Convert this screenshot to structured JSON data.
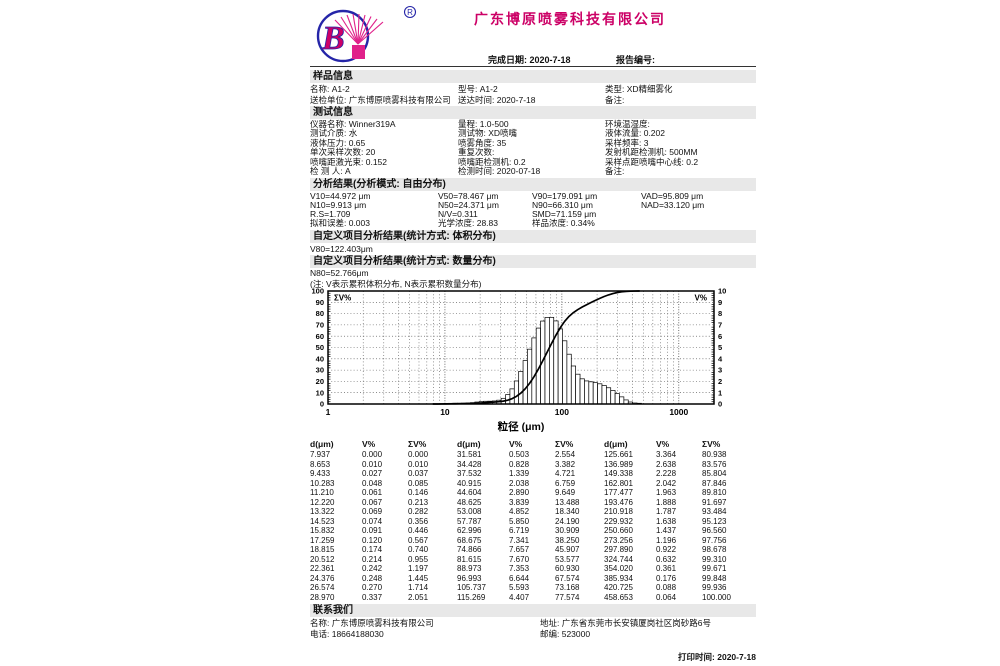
{
  "colors": {
    "accent_magenta": "#cc0066",
    "logo_blue": "#2525a8",
    "logo_pink": "#e0218a",
    "section_bar_bg": "#e8e8e8"
  },
  "header": {
    "company": "广东博原喷雾科技有限公司",
    "logo_letter": "B",
    "registered": "R",
    "complete_date": "完成日期: 2020-7-18",
    "report_no": "报告编号:"
  },
  "sections": {
    "sample": {
      "title": "样品信息",
      "rows": [
        [
          "名称: A1-2",
          "型号: A1-2",
          "类型: XD精细雾化"
        ],
        [
          "送检单位: 广东博原喷雾科技有限公司",
          "送达时间: 2020-7-18",
          "备注:"
        ]
      ]
    },
    "test": {
      "title": "测试信息",
      "rows": [
        [
          "仪器名称: Winner319A",
          "量程: 1.0-500",
          "环境温湿度:"
        ],
        [
          "测试介质: 水",
          "测试物: XD喷嘴",
          "液体流量: 0.202"
        ],
        [
          "液体压力: 0.65",
          "喷雾角度: 35",
          "采样频率: 3"
        ],
        [
          "单次采样次数: 20",
          "重复次数:",
          "发射机距检测机: 500MM"
        ],
        [
          "喷嘴距激光束: 0.152",
          "喷嘴距检测机: 0.2",
          "采样点距喷嘴中心线: 0.2"
        ],
        [
          "检 测 人: A",
          "检测时间: 2020-07-18",
          "备注:"
        ]
      ]
    },
    "analysis": {
      "title": "分析结果(分析模式: 自由分布)",
      "rows": [
        [
          "V10=44.972 μm",
          "V50=78.467 μm",
          "V90=179.091 μm",
          "VAD=95.809 μm"
        ],
        [
          "N10=9.913 μm",
          "N50=24.371 μm",
          "N90=66.310 μm",
          "NAD=33.120 μm"
        ],
        [
          "R.S=1.709",
          "N/V=0.311",
          "SMD=71.159 μm",
          ""
        ],
        [
          "拟和误差: 0.003",
          "光学浓度: 28.83",
          "样品浓度: 0.34%",
          ""
        ]
      ]
    },
    "custom_volume": {
      "title": "自定义项目分析结果(统计方式: 体积分布)",
      "value": "V80=122.403μm"
    },
    "custom_number": {
      "title": "自定义项目分析结果(统计方式: 数量分布)",
      "value": "N80=52.766μm"
    },
    "note": "(注: V表示累积体积分布, N表示累积数量分布)"
  },
  "chart_data": {
    "type": "bar",
    "subtype": "log-histogram with cumulative line",
    "title": "",
    "xlabel": "粒径 (μm)",
    "left_axis_label": "ΣV%",
    "right_axis_label": "V%",
    "x_range": [
      1,
      2000
    ],
    "left_range": [
      0,
      100
    ],
    "right_range": [
      0,
      10
    ],
    "x_ticks": [
      1,
      10,
      100,
      1000
    ],
    "grid": true,
    "d": [
      7.937,
      8.653,
      9.433,
      10.283,
      11.21,
      12.22,
      13.322,
      14.523,
      15.832,
      17.259,
      18.815,
      20.512,
      22.361,
      24.376,
      26.574,
      28.97,
      31.581,
      34.428,
      37.532,
      40.915,
      44.604,
      48.625,
      53.008,
      57.787,
      62.996,
      68.675,
      74.866,
      81.615,
      88.973,
      96.993,
      105.737,
      115.269,
      125.661,
      136.989,
      149.338,
      162.801,
      177.477,
      193.476,
      210.918,
      229.932,
      250.66,
      273.256,
      297.89,
      324.744,
      354.02,
      385.934,
      420.725,
      458.653
    ],
    "v": [
      0.0,
      0.01,
      0.027,
      0.048,
      0.061,
      0.067,
      0.069,
      0.074,
      0.091,
      0.12,
      0.174,
      0.214,
      0.242,
      0.248,
      0.27,
      0.337,
      0.503,
      0.828,
      1.339,
      2.038,
      2.89,
      3.839,
      4.852,
      5.85,
      6.719,
      7.341,
      7.657,
      7.67,
      7.353,
      6.644,
      5.593,
      4.407,
      3.364,
      2.638,
      2.228,
      2.042,
      1.963,
      1.888,
      1.787,
      1.638,
      1.437,
      1.196,
      0.922,
      0.632,
      0.361,
      0.176,
      0.088,
      0.064
    ],
    "cum": [
      0.0,
      0.01,
      0.037,
      0.085,
      0.146,
      0.213,
      0.282,
      0.356,
      0.446,
      0.567,
      0.74,
      0.955,
      1.197,
      1.445,
      1.714,
      2.051,
      2.554,
      3.382,
      4.721,
      6.759,
      9.649,
      13.488,
      18.34,
      24.19,
      30.909,
      38.25,
      45.907,
      53.577,
      60.93,
      67.574,
      73.168,
      77.574,
      80.938,
      83.576,
      85.804,
      87.846,
      89.81,
      91.697,
      93.484,
      95.123,
      96.56,
      97.756,
      98.678,
      99.31,
      99.671,
      99.848,
      99.936,
      100.0
    ]
  },
  "table": {
    "headers": [
      "d(μm)",
      "V%",
      "ΣV%",
      "d(μm)",
      "V%",
      "ΣV%",
      "d(μm)",
      "V%",
      "ΣV%"
    ]
  },
  "contact": {
    "title": "联系我们",
    "rows": [
      [
        "名称: 广东博原喷雾科技有限公司",
        "地址: 广东省东莞市长安镇厦岗社区岗砂路6号"
      ],
      [
        "电话: 18664188030",
        "邮编: 523000"
      ]
    ],
    "print_time": "打印时间: 2020-7-18"
  }
}
